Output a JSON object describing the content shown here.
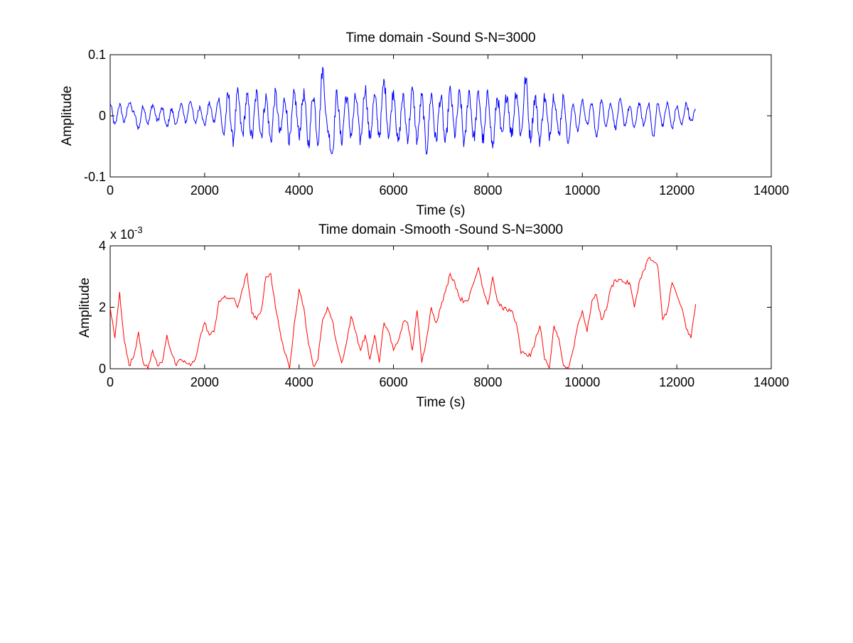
{
  "colors": {
    "background": "#ffffff",
    "series_1": "#0000ff",
    "series_2": "#ff0000",
    "axes": "#000000"
  },
  "chart_data": [
    {
      "type": "line",
      "title": "Time domain -Sound S-N=3000",
      "xlabel": "Time (s)",
      "ylabel": "Amplitude",
      "xlim": [
        0,
        14000
      ],
      "ylim": [
        -0.1,
        0.1
      ],
      "xticks": [
        0,
        2000,
        4000,
        6000,
        8000,
        10000,
        12000,
        14000
      ],
      "xtick_labels": [
        "0",
        "2000",
        "4000",
        "6000",
        "8000",
        "10000",
        "12000",
        "14000"
      ],
      "yticks": [
        -0.1,
        0,
        0.1
      ],
      "ytick_labels": [
        "-0.1",
        "0",
        "0.1"
      ],
      "grid": false,
      "series": [
        {
          "color": "#0000ff",
          "style": "noisy-waveform",
          "x": [
            0,
            100,
            200,
            300,
            400,
            500,
            600,
            700,
            800,
            900,
            1000,
            1100,
            1200,
            1300,
            1400,
            1500,
            1600,
            1700,
            1800,
            1900,
            2000,
            2100,
            2200,
            2300,
            2400,
            2500,
            2600,
            2700,
            2800,
            2900,
            3000,
            3100,
            3200,
            3300,
            3400,
            3500,
            3600,
            3700,
            3800,
            3900,
            4000,
            4100,
            4200,
            4300,
            4400,
            4500,
            4600,
            4700,
            4800,
            4900,
            5000,
            5100,
            5200,
            5300,
            5400,
            5500,
            5600,
            5700,
            5800,
            5900,
            6000,
            6100,
            6200,
            6300,
            6400,
            6500,
            6600,
            6700,
            6800,
            6900,
            7000,
            7100,
            7200,
            7300,
            7400,
            7500,
            7600,
            7700,
            7800,
            7900,
            8000,
            8100,
            8200,
            8300,
            8400,
            8500,
            8600,
            8700,
            8800,
            8900,
            9000,
            9100,
            9200,
            9300,
            9400,
            9500,
            9600,
            9700,
            9800,
            9900,
            10000,
            10100,
            10200,
            10300,
            10400,
            10500,
            10600,
            10700,
            10800,
            10900,
            11000,
            11100,
            11200,
            11300,
            11400,
            11500,
            11600,
            11700,
            11800,
            11900,
            12000,
            12100,
            12200,
            12300,
            12400
          ],
          "y": [
            0.02,
            -0.015,
            0.018,
            -0.01,
            0.022,
            0.005,
            -0.02,
            0.015,
            -0.012,
            0.018,
            -0.008,
            0.012,
            -0.018,
            0.01,
            -0.015,
            0.02,
            -0.01,
            0.025,
            -0.012,
            0.015,
            -0.015,
            0.02,
            -0.01,
            0.028,
            -0.03,
            0.032,
            -0.04,
            0.035,
            -0.03,
            0.03,
            -0.035,
            0.035,
            -0.03,
            0.03,
            -0.04,
            0.035,
            -0.03,
            0.028,
            -0.04,
            0.035,
            -0.03,
            0.035,
            -0.045,
            0.035,
            -0.04,
            0.075,
            -0.02,
            -0.06,
            0.035,
            -0.04,
            0.032,
            -0.03,
            0.03,
            -0.04,
            0.045,
            -0.035,
            0.03,
            -0.03,
            0.055,
            -0.03,
            0.04,
            -0.045,
            0.03,
            -0.035,
            0.04,
            -0.04,
            0.03,
            -0.055,
            0.035,
            -0.04,
            0.03,
            -0.045,
            0.04,
            -0.03,
            0.035,
            -0.045,
            0.04,
            -0.035,
            0.035,
            -0.04,
            0.035,
            -0.05,
            0.03,
            -0.035,
            0.035,
            -0.03,
            0.04,
            -0.03,
            0.06,
            -0.035,
            0.03,
            -0.04,
            0.03,
            -0.03,
            0.035,
            -0.03,
            0.03,
            -0.045,
            0.02,
            -0.025,
            0.025,
            -0.015,
            0.02,
            -0.035,
            0.025,
            -0.015,
            0.02,
            -0.02,
            0.025,
            -0.015,
            0.015,
            -0.02,
            0.02,
            -0.015,
            0.02,
            -0.035,
            0.02,
            -0.015,
            0.02,
            -0.02,
            0.015,
            -0.015,
            0.02,
            -0.01,
            0.01
          ]
        }
      ]
    },
    {
      "type": "line",
      "title": "Time domain -Smooth -Sound S-N=3000",
      "xlabel": "Time (s)",
      "ylabel": "Amplitude",
      "y_multiplier_label": "x 10",
      "y_multiplier_exponent": "-3",
      "xlim": [
        0,
        14000
      ],
      "ylim": [
        0,
        4
      ],
      "xticks": [
        0,
        2000,
        4000,
        6000,
        8000,
        10000,
        12000,
        14000
      ],
      "xtick_labels": [
        "0",
        "2000",
        "4000",
        "6000",
        "8000",
        "10000",
        "12000",
        "14000"
      ],
      "yticks": [
        0,
        2,
        4
      ],
      "ytick_labels": [
        "0",
        "2",
        "4"
      ],
      "grid": false,
      "series": [
        {
          "color": "#ff0000",
          "style": "line",
          "x": [
            0,
            100,
            200,
            300,
            400,
            500,
            600,
            700,
            800,
            900,
            1000,
            1100,
            1200,
            1300,
            1400,
            1500,
            1600,
            1700,
            1800,
            1900,
            2000,
            2100,
            2200,
            2300,
            2400,
            2500,
            2600,
            2700,
            2800,
            2900,
            3000,
            3100,
            3200,
            3300,
            3400,
            3500,
            3600,
            3700,
            3800,
            3900,
            4000,
            4100,
            4200,
            4300,
            4400,
            4500,
            4600,
            4700,
            4800,
            4900,
            5000,
            5100,
            5200,
            5300,
            5400,
            5500,
            5600,
            5700,
            5800,
            5900,
            6000,
            6100,
            6200,
            6300,
            6400,
            6500,
            6600,
            6700,
            6800,
            6900,
            7000,
            7100,
            7200,
            7300,
            7400,
            7500,
            7600,
            7700,
            7800,
            7900,
            8000,
            8100,
            8200,
            8300,
            8400,
            8500,
            8600,
            8700,
            8800,
            8900,
            9000,
            9100,
            9200,
            9300,
            9400,
            9500,
            9600,
            9700,
            9800,
            9900,
            10000,
            10100,
            10200,
            10300,
            10400,
            10500,
            10600,
            10700,
            10800,
            10900,
            11000,
            11100,
            11200,
            11300,
            11400,
            11500,
            11600,
            11700,
            11800,
            11900,
            12000,
            12100,
            12200,
            12300,
            12400
          ],
          "y": [
            2.0,
            1.0,
            2.5,
            0.9,
            0.1,
            0.4,
            1.2,
            0.2,
            0.0,
            0.6,
            0.1,
            0.2,
            1.1,
            0.5,
            0.1,
            0.3,
            0.2,
            0.1,
            0.3,
            1.0,
            1.5,
            1.1,
            1.2,
            2.2,
            2.3,
            2.3,
            2.3,
            2.0,
            2.6,
            3.1,
            1.8,
            1.6,
            1.9,
            3.0,
            3.1,
            2.0,
            1.2,
            0.5,
            0.0,
            1.5,
            2.6,
            2.0,
            0.8,
            0.1,
            0.3,
            1.6,
            2.0,
            1.6,
            0.8,
            0.2,
            0.8,
            1.7,
            1.2,
            0.6,
            1.1,
            0.3,
            1.1,
            0.2,
            1.5,
            1.2,
            0.6,
            0.9,
            1.5,
            1.5,
            0.6,
            1.9,
            0.2,
            1.0,
            2.0,
            1.5,
            2.0,
            2.5,
            3.1,
            2.8,
            2.3,
            2.2,
            2.3,
            2.8,
            3.3,
            2.6,
            2.1,
            3.0,
            2.2,
            2.0,
            1.9,
            1.9,
            1.5,
            0.5,
            0.5,
            0.4,
            0.9,
            1.4,
            0.3,
            0.0,
            1.4,
            1.0,
            0.1,
            0.0,
            0.6,
            1.4,
            1.9,
            1.2,
            2.2,
            2.4,
            1.6,
            1.9,
            2.6,
            2.9,
            2.9,
            2.8,
            2.8,
            2.0,
            2.8,
            3.2,
            3.6,
            3.5,
            3.3,
            1.6,
            1.9,
            2.8,
            2.4,
            2.0,
            1.3,
            1.0,
            2.1
          ]
        }
      ]
    }
  ]
}
